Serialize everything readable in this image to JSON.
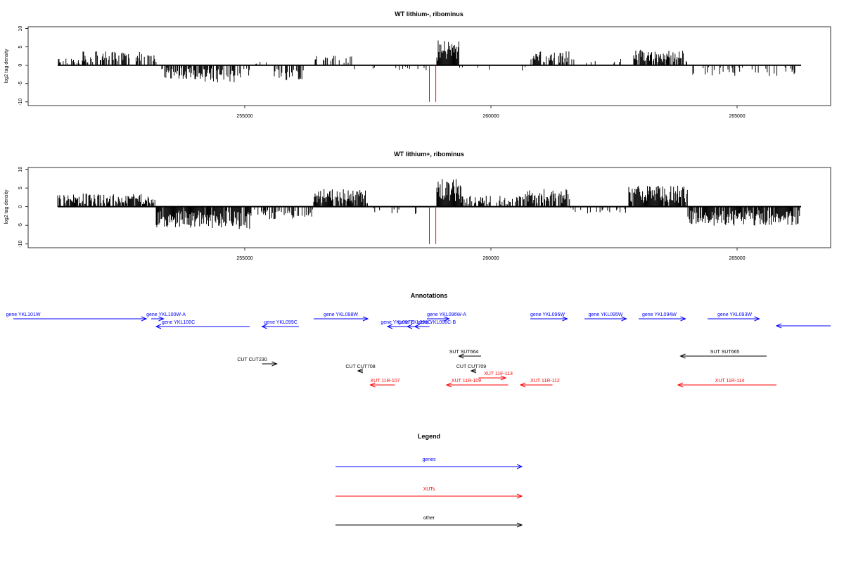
{
  "colors": {
    "genes": "#0000ff",
    "XUTs": "#ff0000",
    "other": "#000000",
    "highlight": "#ff0000",
    "background": "#ffffff"
  },
  "chart_data": [
    {
      "type": "bar",
      "title": "WT lithium-, ribominus",
      "ylabel": "log2 tag density",
      "xlim": [
        250600,
        266900
      ],
      "ylim": [
        -11,
        10.5
      ],
      "x_ticks": [
        255000,
        260000,
        265000
      ],
      "y_ticks": [
        -10,
        -5,
        0,
        5,
        10
      ],
      "x_tick_labels": [
        "255000",
        "260000",
        "265000"
      ],
      "y_tick_labels": [
        "-10",
        "-5",
        "0",
        "5",
        "10"
      ],
      "highlight_x": [
        258750,
        258880
      ],
      "highlight_y": -10,
      "region_x": [
        251200,
        266300
      ],
      "segments": [
        {
          "x0": 251200,
          "x1": 251700,
          "sign": 1,
          "level": 1.5,
          "density": 0.45
        },
        {
          "x0": 251700,
          "x1": 253200,
          "sign": 1,
          "level": 2.8,
          "density": 0.6
        },
        {
          "x0": 253300,
          "x1": 254000,
          "sign": -1,
          "level": 2.8,
          "density": 0.7
        },
        {
          "x0": 254000,
          "x1": 254800,
          "sign": -1,
          "level": 3.5,
          "density": 0.7
        },
        {
          "x0": 254800,
          "x1": 255100,
          "sign": -1,
          "level": 2.5,
          "density": 0.6
        },
        {
          "x0": 255100,
          "x1": 255600,
          "sign": 1,
          "level": 0.8,
          "density": 0.1
        },
        {
          "x0": 255600,
          "x1": 256200,
          "sign": -1,
          "level": 3.0,
          "density": 0.6
        },
        {
          "x0": 256400,
          "x1": 257200,
          "sign": 1,
          "level": 2.0,
          "density": 0.3
        },
        {
          "x0": 257200,
          "x1": 258700,
          "sign": -1,
          "level": 1.0,
          "density": 0.08
        },
        {
          "x0": 258900,
          "x1": 259350,
          "sign": 1,
          "level": 5.0,
          "density": 1.0
        },
        {
          "x0": 259350,
          "x1": 260700,
          "sign": -1,
          "level": 1.2,
          "density": 0.06
        },
        {
          "x0": 260800,
          "x1": 261600,
          "sign": 1,
          "level": 2.8,
          "density": 0.6
        },
        {
          "x0": 261600,
          "x1": 262800,
          "sign": 1,
          "level": 1.5,
          "density": 0.12
        },
        {
          "x0": 262900,
          "x1": 264000,
          "sign": 1,
          "level": 3.2,
          "density": 0.7
        },
        {
          "x0": 264100,
          "x1": 266300,
          "sign": -1,
          "level": 2.2,
          "density": 0.25
        }
      ]
    },
    {
      "type": "bar",
      "title": "WT lithium+, ribominus",
      "ylabel": "log2 tag density",
      "xlim": [
        250600,
        266900
      ],
      "ylim": [
        -11,
        10.5
      ],
      "x_ticks": [
        255000,
        260000,
        265000
      ],
      "y_ticks": [
        -10,
        -5,
        0,
        5,
        10
      ],
      "x_tick_labels": [
        "255000",
        "260000",
        "265000"
      ],
      "y_tick_labels": [
        "-10",
        "-5",
        "0",
        "5",
        "10"
      ],
      "highlight_x": [
        258750,
        258880
      ],
      "highlight_y": -10,
      "region_x": [
        251200,
        266300
      ],
      "segments": [
        {
          "x0": 251200,
          "x1": 253200,
          "sign": 1,
          "level": 2.6,
          "density": 0.75
        },
        {
          "x0": 253200,
          "x1": 254300,
          "sign": -1,
          "level": 4.2,
          "density": 0.95
        },
        {
          "x0": 254300,
          "x1": 255100,
          "sign": -1,
          "level": 4.5,
          "density": 0.9
        },
        {
          "x0": 255100,
          "x1": 256400,
          "sign": -1,
          "level": 2.5,
          "density": 0.5
        },
        {
          "x0": 256400,
          "x1": 257500,
          "sign": 1,
          "level": 3.5,
          "density": 0.85
        },
        {
          "x0": 257500,
          "x1": 258700,
          "sign": -1,
          "level": 1.5,
          "density": 0.15
        },
        {
          "x0": 258900,
          "x1": 259400,
          "sign": 1,
          "level": 5.5,
          "density": 1.0
        },
        {
          "x0": 259400,
          "x1": 260700,
          "sign": 1,
          "level": 2.2,
          "density": 0.5
        },
        {
          "x0": 260700,
          "x1": 261600,
          "sign": 1,
          "level": 3.5,
          "density": 0.85
        },
        {
          "x0": 261600,
          "x1": 262800,
          "sign": -1,
          "level": 1.5,
          "density": 0.2
        },
        {
          "x0": 262800,
          "x1": 264000,
          "sign": 1,
          "level": 4.2,
          "density": 0.9
        },
        {
          "x0": 264000,
          "x1": 266300,
          "sign": -1,
          "level": 3.8,
          "density": 0.85
        }
      ]
    }
  ],
  "annotations": {
    "title": "Annotations",
    "items": [
      {
        "label": "gene YKL101W",
        "kind": "genes",
        "x0": 250300,
        "x1": 253000,
        "row": 0,
        "dir": "right",
        "label_x": 250500
      },
      {
        "label": "gene YKL100W-A",
        "kind": "genes",
        "x0": 253100,
        "x1": 253350,
        "row": 0,
        "dir": "right",
        "label_x": 253400
      },
      {
        "label": "gene YKL100C",
        "kind": "genes",
        "x0": 253200,
        "x1": 255100,
        "row": 1,
        "dir": "left",
        "label_x": 253650
      },
      {
        "label": "gene YKL099C",
        "kind": "genes",
        "x0": 255350,
        "x1": 256100,
        "row": 1,
        "dir": "left",
        "label_x": 255730
      },
      {
        "label": "gene YKL098W",
        "kind": "genes",
        "x0": 256400,
        "x1": 257500,
        "row": 0,
        "dir": "right",
        "label_x": 256950
      },
      {
        "label": "gene YKL097C",
        "kind": "genes",
        "x0": 257900,
        "x1": 258350,
        "row": 1,
        "dir": "left",
        "label_x": 258100
      },
      {
        "label": "gene YKL096C",
        "kind": "genes",
        "x0": 258300,
        "x1": 258700,
        "row": 1,
        "dir": "left",
        "label_x": 258450
      },
      {
        "label": "gene YKL096W-A",
        "kind": "genes",
        "x0": 258700,
        "x1": 259150,
        "row": 0,
        "dir": "right",
        "label_x": 259100
      },
      {
        "label": "gene YKL096C-B",
        "kind": "genes",
        "x0": 258450,
        "x1": 258750,
        "row": 1,
        "dir": "left",
        "label_x": 258900
      },
      {
        "label": "gene YKL096W",
        "kind": "genes",
        "x0": 260800,
        "x1": 261550,
        "row": 0,
        "dir": "right",
        "label_x": 261150
      },
      {
        "label": "gene YKL095W",
        "kind": "genes",
        "x0": 261900,
        "x1": 262750,
        "row": 0,
        "dir": "right",
        "label_x": 262330
      },
      {
        "label": "gene YKL094W",
        "kind": "genes",
        "x0": 263000,
        "x1": 263950,
        "row": 0,
        "dir": "right",
        "label_x": 263420
      },
      {
        "label": "gene YKL093W",
        "kind": "genes",
        "x0": 264400,
        "x1": 265450,
        "row": 0,
        "dir": "right",
        "label_x": 264950
      },
      {
        "label": "",
        "kind": "genes",
        "x0": 265800,
        "x1": 266900,
        "row": 2,
        "dir": "left",
        "label_x": 266300
      },
      {
        "label": "SUT SUT664",
        "kind": "other",
        "x0": 259350,
        "x1": 259800,
        "row": 3,
        "dir": "left",
        "label_x": 259450
      },
      {
        "label": "SUT SUT665",
        "kind": "other",
        "x0": 263850,
        "x1": 265600,
        "row": 3,
        "dir": "left",
        "label_x": 264750
      },
      {
        "label": "CUT CUT230",
        "kind": "other",
        "x0": 255350,
        "x1": 255650,
        "row": 4,
        "dir": "right",
        "label_x": 255150
      },
      {
        "label": "CUT CUT708",
        "kind": "other",
        "x0": 257300,
        "x1": 257400,
        "row": 5,
        "dir": "left",
        "label_x": 257350
      },
      {
        "label": "CUT CUT709",
        "kind": "other",
        "x0": 259600,
        "x1": 259700,
        "row": 5,
        "dir": "left",
        "label_x": 259600
      },
      {
        "label": "XUT 11F-113",
        "kind": "XUTs",
        "x0": 259750,
        "x1": 260300,
        "row": 6,
        "dir": "right",
        "label_x": 260150
      },
      {
        "label": "XUT 11R-107",
        "kind": "XUTs",
        "x0": 257550,
        "x1": 258050,
        "row": 7,
        "dir": "left",
        "label_x": 257850
      },
      {
        "label": "XUT 11R-109",
        "kind": "XUTs",
        "x0": 259100,
        "x1": 260350,
        "row": 7,
        "dir": "left",
        "label_x": 259500
      },
      {
        "label": "XUT 11R-112",
        "kind": "XUTs",
        "x0": 260600,
        "x1": 261250,
        "row": 7,
        "dir": "left",
        "label_x": 261100
      },
      {
        "label": "XUT 11R-114",
        "kind": "XUTs",
        "x0": 263800,
        "x1": 265800,
        "row": 7,
        "dir": "left",
        "label_x": 264850
      }
    ]
  },
  "legend": {
    "title": "Legend",
    "entries": [
      {
        "label": "genes",
        "kind": "genes"
      },
      {
        "label": "XUTs",
        "kind": "XUTs"
      },
      {
        "label": "other",
        "kind": "other"
      }
    ]
  }
}
